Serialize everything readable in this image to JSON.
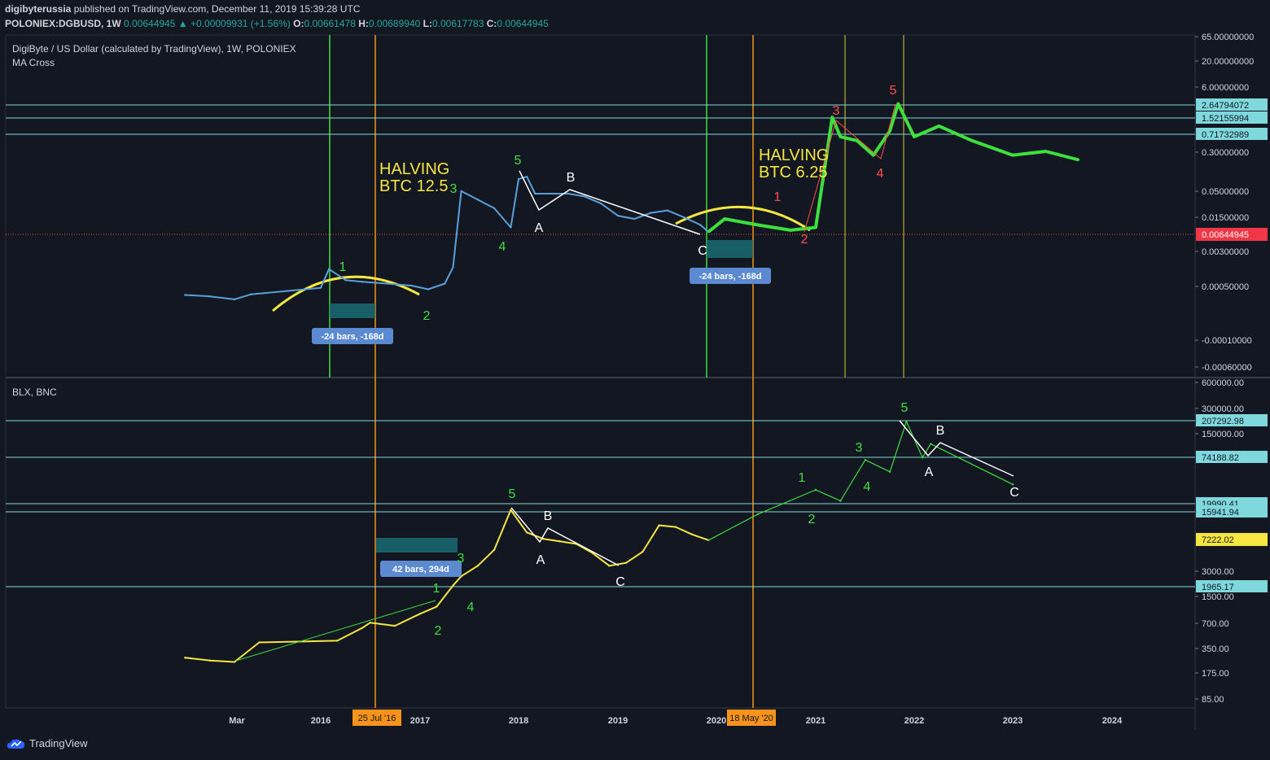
{
  "header": {
    "author": "digibyterussia",
    "published": "published on TradingView.com, December 11, 2019 15:39:28 UTC",
    "symbol": "POLONIEX:DGBUSD, 1W",
    "last": "0.00644945",
    "change_arrow": "▲",
    "change": "+0.00009931 (+1.56%)",
    "o_label": "O:",
    "o": "0.00661478",
    "h_label": "H:",
    "h": "0.00689940",
    "l_label": "L:",
    "l": "0.00617783",
    "c_label": "C:",
    "c": "0.00644945"
  },
  "brand": {
    "name": "TradingView",
    "icon": "tradingview-cloud-icon"
  },
  "colors": {
    "bg": "#131722",
    "grid": "#2a2e39",
    "axis_text": "#d1d4dc",
    "green": "#3de03d",
    "orange": "#f7931a",
    "yellow": "#f5e642",
    "cyan": "#7fd8dc",
    "red_label": "#ff4d4d",
    "price_tag": "#f23645",
    "teal_box": "#1a6b73",
    "badge": "#5b8ad0",
    "price_line": "#e0533d"
  },
  "chart_data": [
    {
      "type": "line",
      "title": "DigiByte / US Dollar (calculated by TradingView), 1W, POLONIEX",
      "subtitle": "MA Cross",
      "scale": "log",
      "x_ticks": [
        "Mar",
        "2016",
        "2017",
        "2018",
        "2019",
        "2020",
        "2021",
        "2022",
        "2023",
        "2024"
      ],
      "y_ticks": [
        "65.00000000",
        "20.00000000",
        "6.00000000",
        "0.30000000",
        "0.05000000",
        "0.01500000",
        "0.00300000",
        "0.00050000",
        "-0.00010000",
        "-0.00060000"
      ],
      "last_price": "0.00644945",
      "horizontal_levels": [
        "2.64794072",
        "1.52155994",
        "0.71732989"
      ],
      "series": [
        {
          "name": "DGBUSD",
          "x": [
            "2015-03",
            "2015-06",
            "2015-09",
            "2015-11",
            "2016-01",
            "2016-02",
            "2016-04",
            "2016-06",
            "2016-09",
            "2016-12",
            "2017-02",
            "2017-04",
            "2017-05",
            "2017-06",
            "2017-08",
            "2017-10",
            "2017-12",
            "2018-01",
            "2018-02",
            "2018-03",
            "2018-05",
            "2018-07",
            "2018-09",
            "2018-11",
            "2019-01",
            "2019-03",
            "2019-05",
            "2019-07",
            "2019-09",
            "2019-11",
            "2019-12"
          ],
          "y": [
            0.00032,
            0.0003,
            0.00026,
            0.00033,
            0.00045,
            0.0011,
            0.00065,
            0.0006,
            0.00055,
            0.0005,
            0.00042,
            0.00055,
            0.0012,
            0.045,
            0.03,
            0.02,
            0.008,
            0.08,
            0.09,
            0.04,
            0.04,
            0.04,
            0.035,
            0.025,
            0.014,
            0.012,
            0.016,
            0.018,
            0.013,
            0.009,
            0.0064
          ]
        },
        {
          "name": "projection",
          "x": [
            "2019-12",
            "2020-02",
            "2020-06",
            "2020-10",
            "2021-01",
            "2021-03",
            "2021-04",
            "2021-06",
            "2021-08",
            "2021-10",
            "2021-11",
            "2022-01",
            "2022-04",
            "2022-08",
            "2023-01",
            "2023-05",
            "2023-09"
          ],
          "y": [
            0.0065,
            0.012,
            0.009,
            0.007,
            0.008,
            1.52,
            0.6,
            0.5,
            0.25,
            0.8,
            2.9,
            0.6,
            1.0,
            0.5,
            0.25,
            0.3,
            0.2
          ]
        }
      ],
      "annotations": [
        {
          "text": "HALVING\nBTC 12.5"
        },
        {
          "text": "HALVING\nBTC 6.25"
        },
        {
          "text": "-24 bars, -168d"
        },
        {
          "text": "-24 bars, -168d"
        },
        {
          "text": "1"
        },
        {
          "text": "2"
        },
        {
          "text": "3"
        },
        {
          "text": "4"
        },
        {
          "text": "5"
        },
        {
          "text": "A"
        },
        {
          "text": "B"
        },
        {
          "text": "C"
        },
        {
          "text": "1"
        },
        {
          "text": "2"
        },
        {
          "text": "3"
        },
        {
          "text": "4"
        },
        {
          "text": "5"
        }
      ]
    },
    {
      "type": "line",
      "title": "BLX, BNC",
      "scale": "log",
      "y_ticks": [
        "600000.00",
        "300000.00",
        "150000.00",
        "3000.00",
        "1500.00",
        "700.00",
        "350.00",
        "175.00",
        "85.00"
      ],
      "horizontal_levels": [
        "207292.98",
        "74188.82",
        "19990.41",
        "15941.94",
        "1965.17"
      ],
      "last_price": "7222.02",
      "x_markers": [
        "25 Jul '16",
        "18 May '20"
      ],
      "series": [
        {
          "name": "BLX",
          "x": [
            "2015-03",
            "2015-06",
            "2015-09",
            "2015-12",
            "2016-03",
            "2016-06",
            "2016-07",
            "2016-10",
            "2017-01",
            "2017-03",
            "2017-05",
            "2017-06",
            "2017-08",
            "2017-10",
            "2017-12",
            "2018-02",
            "2018-04",
            "2018-06",
            "2018-08",
            "2018-10",
            "2018-12",
            "2019-02",
            "2019-04",
            "2019-06",
            "2019-08",
            "2019-10",
            "2019-12"
          ],
          "y": [
            260,
            240,
            230,
            400,
            420,
            600,
            700,
            640,
            900,
            1100,
            2000,
            2600,
            3500,
            5500,
            17000,
            9000,
            7500,
            7000,
            6500,
            5000,
            3500,
            3800,
            5200,
            11000,
            10500,
            8500,
            7222
          ]
        },
        {
          "name": "projection",
          "x": [
            "2019-12",
            "2020-06",
            "2021-01",
            "2021-04",
            "2021-07",
            "2021-10",
            "2021-12",
            "2022-02",
            "2022-03",
            "2023-01"
          ],
          "y": [
            7222,
            15000,
            30000,
            22000,
            70000,
            50000,
            207000,
            75000,
            110000,
            35000
          ]
        }
      ],
      "annotations": [
        {
          "text": "42 bars, 294d"
        },
        {
          "text": "1"
        },
        {
          "text": "2"
        },
        {
          "text": "3"
        },
        {
          "text": "4"
        },
        {
          "text": "5"
        },
        {
          "text": "A"
        },
        {
          "text": "B"
        },
        {
          "text": "C"
        },
        {
          "text": "1"
        },
        {
          "text": "2"
        },
        {
          "text": "3"
        },
        {
          "text": "4"
        },
        {
          "text": "5"
        },
        {
          "text": "A"
        },
        {
          "text": "B"
        },
        {
          "text": "C"
        }
      ]
    }
  ]
}
